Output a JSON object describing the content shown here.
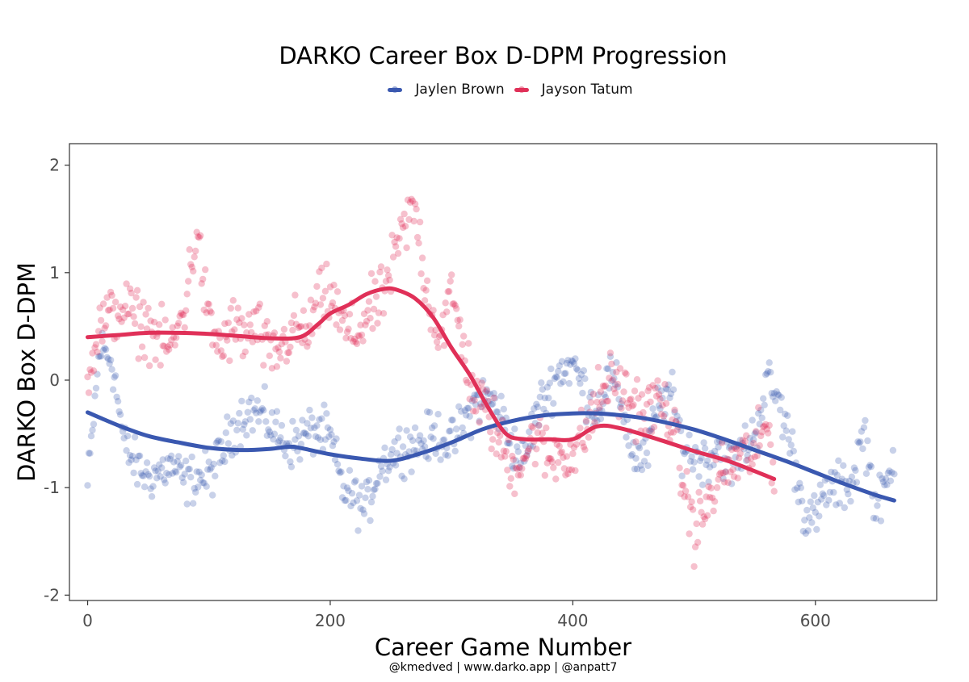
{
  "chart_data": {
    "type": "scatter",
    "title": "DARKO Career Box D-DPM Progression",
    "xlabel": "Career Game Number",
    "ylabel": "DARKO Box D-DPM",
    "xlim": [
      -15,
      700
    ],
    "ylim": [
      -2.05,
      2.2
    ],
    "x_ticks": [
      0,
      200,
      400,
      600
    ],
    "x_tick_labels": [
      "0",
      "200",
      "400",
      "600"
    ],
    "y_ticks": [
      2,
      1,
      0,
      -1,
      -2
    ],
    "y_tick_labels": [
      "2",
      "1",
      "0",
      "-1",
      "-2"
    ],
    "grid": false,
    "legend_position": "top",
    "caption": "@kmedved | www.darko.app | @anpatt7",
    "series": [
      {
        "name": "Jaylen Brown",
        "color": "#3a58b0",
        "smooth": {
          "x": [
            0,
            25,
            50,
            75,
            100,
            125,
            150,
            165,
            175,
            200,
            225,
            250,
            275,
            300,
            325,
            350,
            375,
            400,
            420,
            450,
            475,
            500,
            525,
            550,
            575,
            600,
            625,
            650,
            665
          ],
          "y": [
            -0.3,
            -0.42,
            -0.52,
            -0.58,
            -0.63,
            -0.65,
            -0.64,
            -0.62,
            -0.63,
            -0.69,
            -0.73,
            -0.75,
            -0.68,
            -0.58,
            -0.46,
            -0.38,
            -0.33,
            -0.31,
            -0.31,
            -0.34,
            -0.39,
            -0.46,
            -0.55,
            -0.65,
            -0.75,
            -0.86,
            -0.97,
            -1.07,
            -1.12
          ]
        },
        "point_anchors": {
          "x": [
            0,
            10,
            20,
            30,
            40,
            50,
            60,
            70,
            80,
            90,
            100,
            110,
            120,
            130,
            140,
            150,
            160,
            170,
            180,
            190,
            200,
            210,
            220,
            230,
            240,
            250,
            260,
            270,
            280,
            290,
            300,
            310,
            320,
            330,
            340,
            350,
            360,
            370,
            380,
            390,
            400,
            410,
            420,
            430,
            440,
            450,
            460,
            470,
            480,
            490,
            500,
            510,
            520,
            530,
            540,
            550,
            560,
            570,
            580,
            590,
            600,
            610,
            620,
            630,
            640,
            650,
            660,
            665
          ],
          "y": [
            -1.0,
            0.3,
            0.2,
            -0.6,
            -0.8,
            -0.9,
            -0.85,
            -0.8,
            -0.95,
            -0.9,
            -0.9,
            -0.7,
            -0.45,
            -0.3,
            -0.3,
            -0.4,
            -0.55,
            -0.6,
            -0.5,
            -0.45,
            -0.55,
            -1.0,
            -1.1,
            -1.2,
            -0.8,
            -0.7,
            -0.6,
            -0.6,
            -0.55,
            -0.5,
            -0.6,
            -0.4,
            -0.2,
            -0.15,
            -0.3,
            -0.6,
            -0.75,
            -0.3,
            -0.1,
            0.1,
            0.15,
            -0.1,
            -0.3,
            0.05,
            -0.2,
            -0.7,
            -0.75,
            -0.25,
            -0.1,
            -0.6,
            -0.7,
            -0.75,
            -0.6,
            -0.8,
            -0.65,
            -0.5,
            0.0,
            -0.2,
            -0.6,
            -1.2,
            -1.3,
            -1.0,
            -1.0,
            -0.95,
            -0.45,
            -1.2,
            -0.95,
            -0.7
          ],
          "spread": 0.16
        }
      },
      {
        "name": "Jayson Tatum",
        "color": "#e03058",
        "smooth": {
          "x": [
            0,
            25,
            50,
            75,
            100,
            125,
            150,
            175,
            190,
            200,
            215,
            230,
            245,
            255,
            270,
            285,
            300,
            315,
            330,
            345,
            360,
            380,
            400,
            420,
            440,
            470,
            500,
            530,
            566
          ],
          "y": [
            0.4,
            0.42,
            0.44,
            0.44,
            0.43,
            0.41,
            0.39,
            0.4,
            0.52,
            0.62,
            0.7,
            0.8,
            0.85,
            0.84,
            0.76,
            0.58,
            0.3,
            0.05,
            -0.25,
            -0.5,
            -0.55,
            -0.55,
            -0.55,
            -0.43,
            -0.45,
            -0.55,
            -0.66,
            -0.76,
            -0.92
          ]
        },
        "point_anchors": {
          "x": [
            0,
            10,
            20,
            30,
            40,
            50,
            60,
            70,
            80,
            90,
            100,
            110,
            120,
            130,
            140,
            150,
            160,
            170,
            180,
            190,
            200,
            210,
            220,
            230,
            240,
            250,
            260,
            270,
            280,
            290,
            300,
            310,
            320,
            330,
            340,
            350,
            360,
            370,
            380,
            390,
            400,
            410,
            420,
            430,
            440,
            450,
            460,
            470,
            480,
            490,
            500,
            510,
            520,
            530,
            540,
            550,
            560,
            566
          ],
          "y": [
            0.1,
            0.5,
            0.6,
            0.7,
            0.55,
            0.5,
            0.35,
            0.3,
            0.7,
            1.4,
            0.5,
            0.3,
            0.5,
            0.4,
            0.5,
            0.2,
            0.3,
            0.5,
            0.4,
            0.7,
            0.8,
            0.5,
            0.4,
            0.6,
            0.7,
            1.0,
            1.4,
            1.6,
            0.8,
            0.4,
            0.8,
            0.3,
            -0.2,
            -0.3,
            -0.6,
            -0.8,
            -0.7,
            -0.5,
            -0.75,
            -0.65,
            -0.7,
            -0.5,
            -0.2,
            0.0,
            -0.1,
            -0.2,
            -0.3,
            -0.2,
            -0.3,
            -0.9,
            -1.4,
            -1.2,
            -0.9,
            -0.8,
            -0.7,
            -0.7,
            -0.4,
            -0.8
          ],
          "spread": 0.2
        }
      }
    ]
  }
}
